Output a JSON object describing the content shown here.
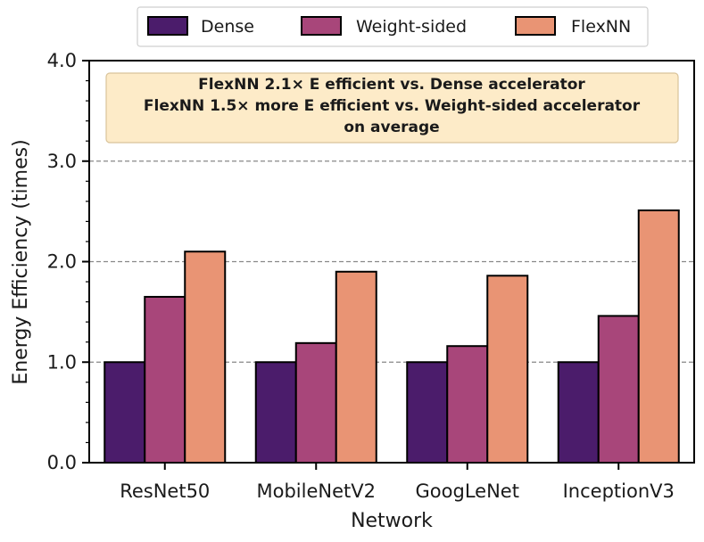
{
  "chart_data": {
    "type": "bar",
    "title": "",
    "xlabel": "Network",
    "ylabel": "Energy Efficiency (times)",
    "categories": [
      "ResNet50",
      "MobileNetV2",
      "GoogLeNet",
      "InceptionV3"
    ],
    "series": [
      {
        "name": "Dense",
        "color": "#4b1c6b",
        "values": [
          1.0,
          1.0,
          1.0,
          1.0
        ]
      },
      {
        "name": "Weight-sided",
        "color": "#a8467a",
        "values": [
          1.65,
          1.19,
          1.16,
          1.46
        ]
      },
      {
        "name": "FlexNN",
        "color": "#e99474",
        "values": [
          2.1,
          1.9,
          1.86,
          2.51
        ]
      }
    ],
    "ylim": [
      0,
      4
    ],
    "yticks": [
      "0.0",
      "1.0",
      "2.0",
      "3.0",
      "4.0"
    ],
    "ytick_values": [
      0,
      1,
      2,
      3,
      4
    ],
    "grid_lines": [
      1,
      2,
      3
    ],
    "legend_position": "top-center",
    "annotation": {
      "lines": [
        "FlexNN 2.1× E efficient vs. Dense accelerator",
        "FlexNN 1.5× more E efficient vs. Weight-sided accelerator",
        "on average"
      ],
      "fill": "#fdebc8",
      "border": "#d9c39a"
    }
  }
}
